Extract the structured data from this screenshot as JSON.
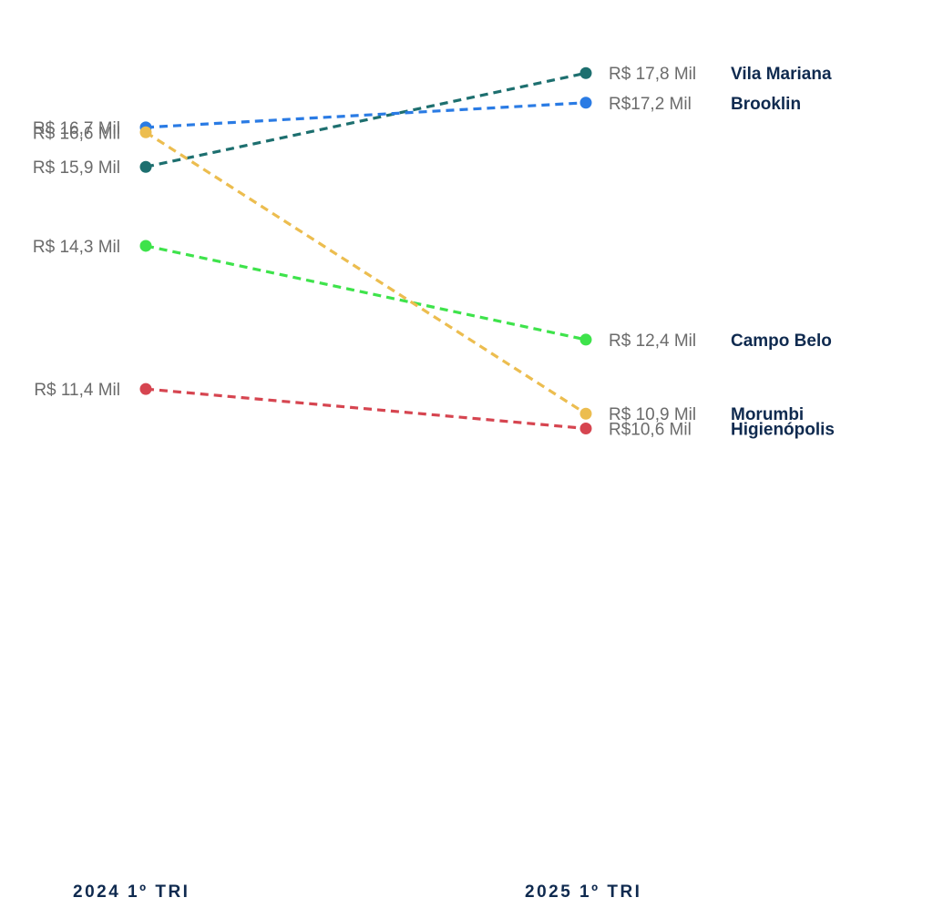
{
  "chart_data": {
    "type": "line",
    "subtype": "slope",
    "categories": [
      "2024 1º TRI",
      "2025 1º TRI"
    ],
    "unit": "R$ Mil",
    "series": [
      {
        "name": "Vila Mariana",
        "values": [
          15.9,
          17.8
        ],
        "labels": [
          "R$ 15,9 Mil",
          "R$ 17,8 Mil"
        ],
        "color": "#1d6f6f"
      },
      {
        "name": "Brooklin",
        "values": [
          16.7,
          17.2
        ],
        "labels": [
          "R$ 16,7 Mil",
          "R$17,2 Mil"
        ],
        "color": "#2a7be4"
      },
      {
        "name": "Campo Belo",
        "values": [
          14.3,
          12.4
        ],
        "labels": [
          "R$ 14,3 Mil",
          "R$ 12,4 Mil"
        ],
        "color": "#3ee34b"
      },
      {
        "name": "Morumbi",
        "values": [
          16.6,
          10.9
        ],
        "labels": [
          "R$ 16,6 Mil",
          "R$ 10,9 Mil"
        ],
        "color": "#ecbd4f"
      },
      {
        "name": "Higienópolis",
        "values": [
          11.4,
          10.6
        ],
        "labels": [
          "R$ 11,4 Mil",
          "R$10,6 Mil"
        ],
        "color": "#d64550"
      }
    ],
    "line_style": "dashed",
    "grid": false,
    "legend": "none"
  }
}
